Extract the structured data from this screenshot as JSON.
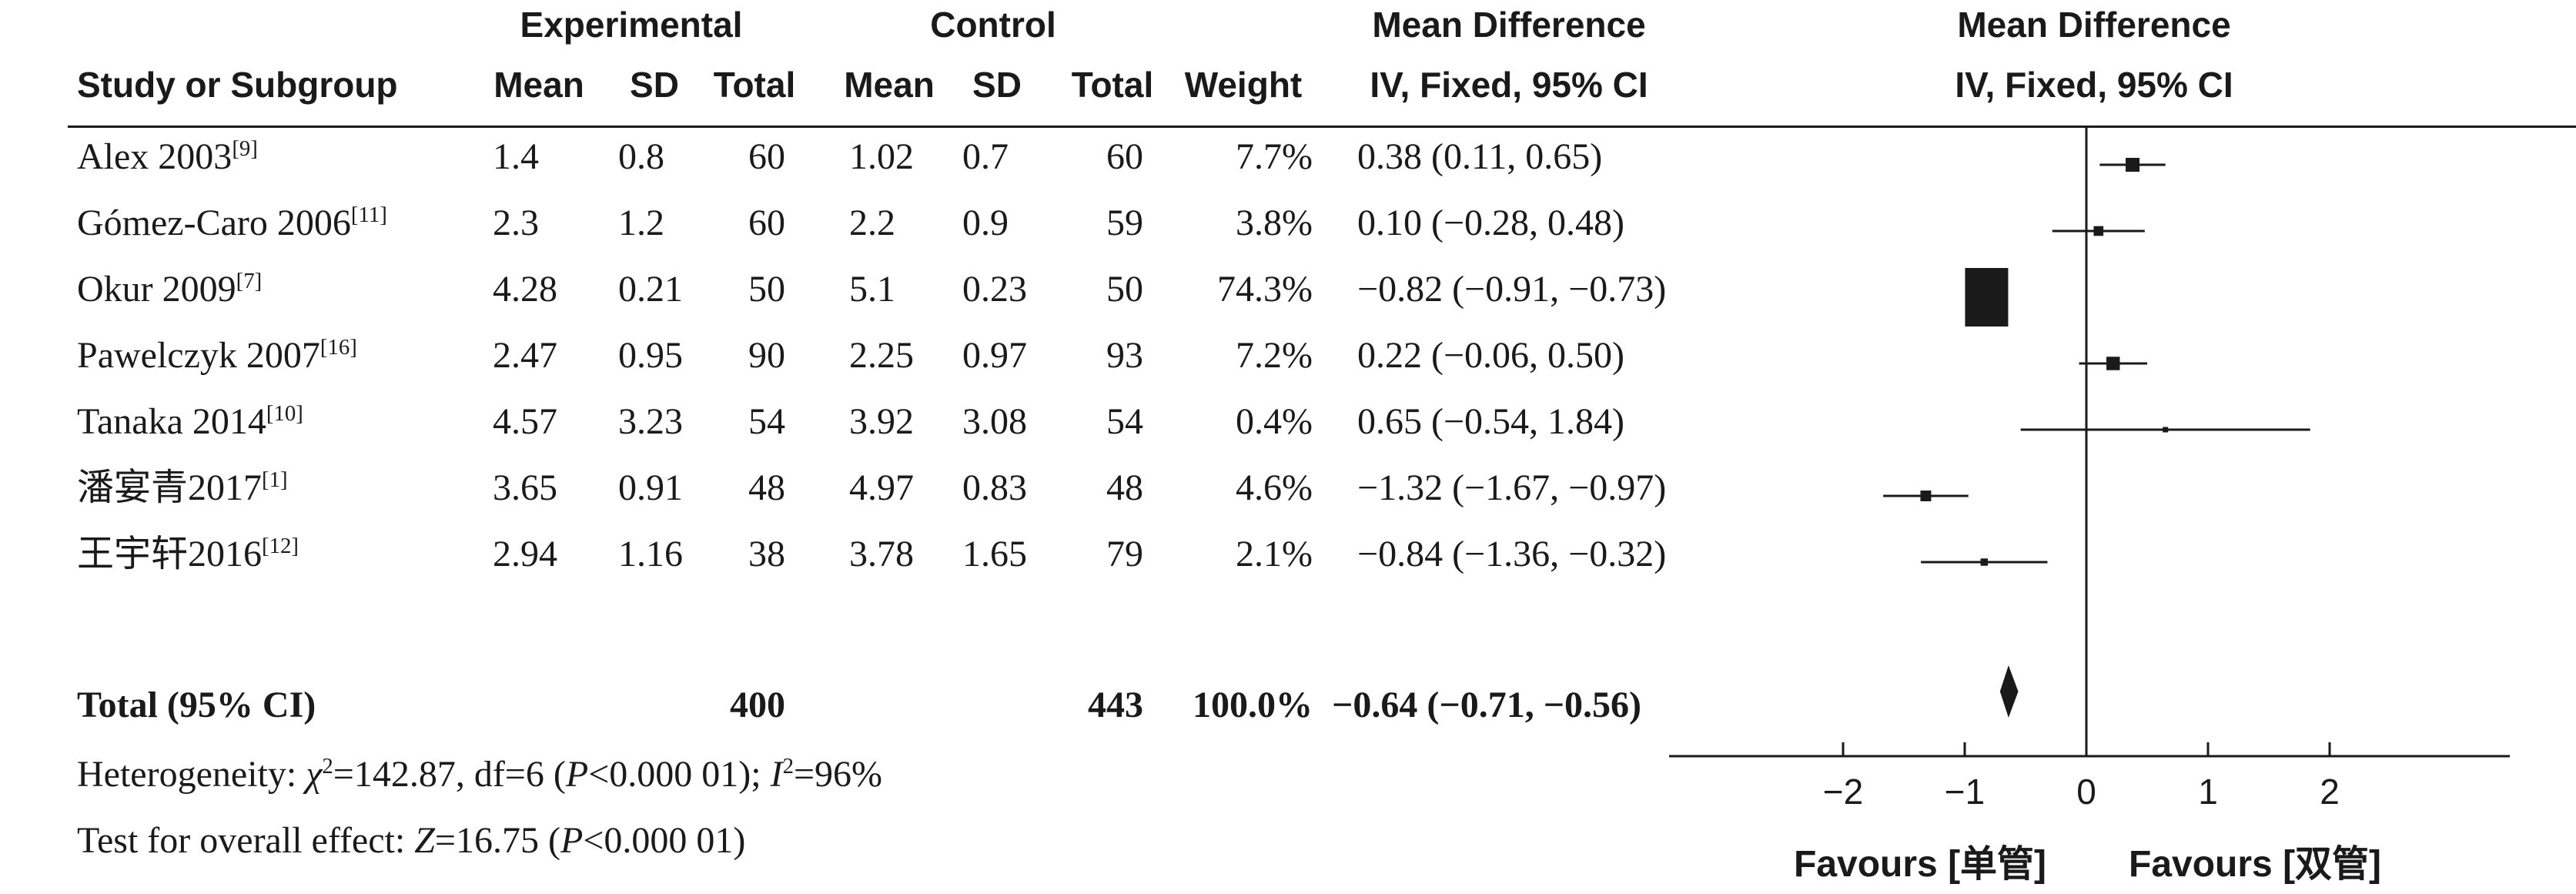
{
  "headers": {
    "experimental": "Experimental",
    "control": "Control",
    "mean_difference": "Mean Difference",
    "study": "Study or Subgroup",
    "mean_exp": "Mean",
    "sd_exp": "SD",
    "total_exp": "Total",
    "mean_ctl": "Mean",
    "sd_ctl": "SD",
    "total_ctl": "Total",
    "weight": "Weight",
    "method": "IV, Fixed, 95% CI",
    "plot_title": "Mean Difference",
    "plot_method": "IV, Fixed, 95% CI"
  },
  "studies": [
    {
      "name": "Alex 2003",
      "ref": "[9]",
      "mean_exp": "1.4",
      "sd_exp": "0.8",
      "total_exp": "60",
      "mean_ctl": "1.02",
      "sd_ctl": "0.7",
      "total_ctl": "60",
      "weight": "7.7%",
      "ci_text": "0.38 (0.11, 0.65)"
    },
    {
      "name": "Gómez-Caro 2006",
      "ref": "[11]",
      "mean_exp": "2.3",
      "sd_exp": "1.2",
      "total_exp": "60",
      "mean_ctl": "2.2",
      "sd_ctl": "0.9",
      "total_ctl": "59",
      "weight": "3.8%",
      "ci_text": "0.10 (−0.28, 0.48)"
    },
    {
      "name": "Okur 2009",
      "ref": "[7]",
      "mean_exp": "4.28",
      "sd_exp": "0.21",
      "total_exp": "50",
      "mean_ctl": "5.1",
      "sd_ctl": "0.23",
      "total_ctl": "50",
      "weight": "74.3%",
      "ci_text": "−0.82 (−0.91, −0.73)"
    },
    {
      "name": "Pawelczyk 2007",
      "ref": "[16]",
      "mean_exp": "2.47",
      "sd_exp": "0.95",
      "total_exp": "90",
      "mean_ctl": "2.25",
      "sd_ctl": "0.97",
      "total_ctl": "93",
      "weight": "7.2%",
      "ci_text": "0.22 (−0.06, 0.50)"
    },
    {
      "name": "Tanaka 2014",
      "ref": "[10]",
      "mean_exp": "4.57",
      "sd_exp": "3.23",
      "total_exp": "54",
      "mean_ctl": "3.92",
      "sd_ctl": "3.08",
      "total_ctl": "54",
      "weight": "0.4%",
      "ci_text": "0.65 (−0.54, 1.84)"
    },
    {
      "name": "潘宴青2017",
      "ref": "[1]",
      "mean_exp": "3.65",
      "sd_exp": "0.91",
      "total_exp": "48",
      "mean_ctl": "4.97",
      "sd_ctl": "0.83",
      "total_ctl": "48",
      "weight": "4.6%",
      "ci_text": "−1.32 (−1.67, −0.97)"
    },
    {
      "name": "王宇轩2016",
      "ref": "[12]",
      "mean_exp": "2.94",
      "sd_exp": "1.16",
      "total_exp": "38",
      "mean_ctl": "3.78",
      "sd_ctl": "1.65",
      "total_ctl": "79",
      "weight": "2.1%",
      "ci_text": "−0.84 (−1.36, −0.32)"
    }
  ],
  "total": {
    "label": "Total (95% CI)",
    "total_exp": "400",
    "total_ctl": "443",
    "weight": "100.0%",
    "ci_text": "−0.64 (−0.71, −0.56)"
  },
  "heterogeneity": {
    "prefix": "Heterogeneity: ",
    "chi": "χ",
    "chi_sup": "2",
    "chi_val": "=142.87, df=6 (",
    "p": "P",
    "p_val": "<0.000 01); ",
    "i": "I",
    "i_sup": "2",
    "i_val": "=96%"
  },
  "overall": {
    "prefix": "Test for overall effect: ",
    "z": "Z",
    "z_val": "=16.75 (",
    "p": "P",
    "p_val": "<0.000 01)"
  },
  "favours_left": "Favours [单管]",
  "favours_right": "Favours [双管]",
  "chart_data": {
    "type": "forest",
    "x_ticks": [
      -2,
      -1,
      0,
      1,
      2
    ],
    "x_tick_labels": [
      "−2",
      "−1",
      "0",
      "1",
      "2"
    ],
    "xlim": [
      -3.3,
      3.5
    ],
    "null_line": 0,
    "series": [
      {
        "study": "Alex 2003",
        "md": 0.38,
        "lower": 0.11,
        "upper": 0.65,
        "weight": 7.7
      },
      {
        "study": "Gómez-Caro 2006",
        "md": 0.1,
        "lower": -0.28,
        "upper": 0.48,
        "weight": 3.8
      },
      {
        "study": "Okur 2009",
        "md": -0.82,
        "lower": -0.91,
        "upper": -0.73,
        "weight": 74.3
      },
      {
        "study": "Pawelczyk 2007",
        "md": 0.22,
        "lower": -0.06,
        "upper": 0.5,
        "weight": 7.2
      },
      {
        "study": "Tanaka 2014",
        "md": 0.65,
        "lower": -0.54,
        "upper": 1.84,
        "weight": 0.4
      },
      {
        "study": "潘宴青2017",
        "md": -1.32,
        "lower": -1.67,
        "upper": -0.97,
        "weight": 4.6
      },
      {
        "study": "王宇轩2016",
        "md": -0.84,
        "lower": -1.36,
        "upper": -0.32,
        "weight": 2.1
      }
    ],
    "pooled": {
      "md": -0.64,
      "lower": -0.71,
      "upper": -0.56
    }
  }
}
